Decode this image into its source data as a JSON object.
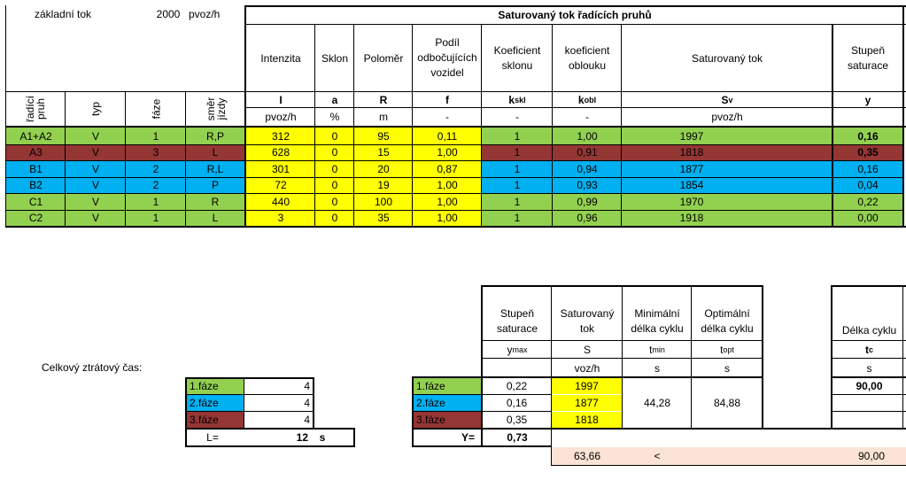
{
  "top": {
    "base_flow_label": "základní tok",
    "base_flow_value": "2000",
    "base_flow_unit": "pvoz/h",
    "section_title": "Saturovaný tok řadících pruhů",
    "headers": {
      "intensity": "Intenzita",
      "slope": "Sklon",
      "radius": "Poloměr",
      "turning_share": "Podíl odbočujících vozidel",
      "slope_coef": "Koeficient sklonu",
      "curve_coef": "koeficient oblouku",
      "sat_flow": "Saturovaný tok",
      "degree": "Stupeň saturace"
    },
    "row_headers": {
      "lane": "řadící pruh",
      "type": "typ",
      "phase": "fáze",
      "direction": "směr jízdy"
    },
    "symbols": {
      "intensity": "I",
      "slope": "a",
      "radius": "R",
      "turning_share": "f",
      "slope_coef_main": "k",
      "slope_coef_sub": "skl",
      "curve_coef_main": "k",
      "curve_coef_sub": "obl",
      "sat_flow_main": "S",
      "sat_flow_sub": "v",
      "degree": "y"
    },
    "units": {
      "intensity": "pvoz/h",
      "slope": "%",
      "radius": "m",
      "turning_share": "-",
      "slope_coef": "-",
      "curve_coef": "-",
      "sat_flow": "pvoz/h"
    },
    "rows": [
      {
        "lane": "A1+A2",
        "type": "V",
        "phase": "1",
        "direction": "R,P",
        "I": "312",
        "a": "0",
        "R": "95",
        "f": "0,11",
        "kskl": "1",
        "kobl": "1,00",
        "Sv": "1997",
        "y": "0,16",
        "color": "#92d050",
        "y_bold": true
      },
      {
        "lane": "A3",
        "type": "V",
        "phase": "3",
        "direction": "L",
        "I": "628",
        "a": "0",
        "R": "15",
        "f": "1,00",
        "kskl": "1",
        "kobl": "0,91",
        "Sv": "1818",
        "y": "0,35",
        "color": "#943634",
        "y_bold": true
      },
      {
        "lane": "B1",
        "type": "V",
        "phase": "2",
        "direction": "R,L",
        "I": "301",
        "a": "0",
        "R": "20",
        "f": "0,87",
        "kskl": "1",
        "kobl": "0,94",
        "Sv": "1877",
        "y": "0,16",
        "color": "#00b0f0",
        "y_bold": false
      },
      {
        "lane": "B2",
        "type": "V",
        "phase": "2",
        "direction": "P",
        "I": "72",
        "a": "0",
        "R": "19",
        "f": "1,00",
        "kskl": "1",
        "kobl": "0,93",
        "Sv": "1854",
        "y": "0,04",
        "color": "#00b0f0",
        "y_bold": false
      },
      {
        "lane": "C1",
        "type": "V",
        "phase": "1",
        "direction": "R",
        "I": "440",
        "a": "0",
        "R": "100",
        "f": "1,00",
        "kskl": "1",
        "kobl": "0,99",
        "Sv": "1970",
        "y": "0,22",
        "color": "#92d050",
        "y_bold": false
      },
      {
        "lane": "C2",
        "type": "V",
        "phase": "1",
        "direction": "L",
        "I": "3",
        "a": "0",
        "R": "35",
        "f": "1,00",
        "kskl": "1",
        "kobl": "0,96",
        "Sv": "1918",
        "y": "0,00",
        "color": "#92d050",
        "y_bold": false
      }
    ]
  },
  "loss": {
    "label": "Celkový ztrátový čas:",
    "phases": [
      {
        "name": "1.fáze",
        "value": "4",
        "color": "#92d050"
      },
      {
        "name": "2.fáze",
        "value": "4",
        "color": "#00b0f0"
      },
      {
        "name": "3.fáze",
        "value": "4",
        "color": "#943634"
      }
    ],
    "total_label": "L=",
    "total_value": "12",
    "total_unit": "s"
  },
  "cycle": {
    "headers": {
      "degree": "Stupeň saturace",
      "sat_flow": "Saturovaný tok",
      "min_cycle": "Minimální délka cyklu",
      "opt_cycle": "Optimální délka cyklu",
      "cycle_len": "Délka cyklu"
    },
    "symbols": {
      "degree": "y",
      "degree_sub": "max",
      "sat_flow": "S",
      "min_cycle": "t",
      "min_cycle_sub": "min",
      "opt_cycle": "t",
      "opt_cycle_sub": "opt",
      "cycle_len": "t",
      "cycle_len_sub": "c"
    },
    "units": {
      "sat_flow": "voz/h",
      "min_cycle": "s",
      "opt_cycle": "s",
      "cycle_len": "s"
    },
    "phases": [
      {
        "name": "1.fáze",
        "ymax": "0,22",
        "S": "1997",
        "color": "#92d050"
      },
      {
        "name": "2.fáze",
        "ymax": "0,16",
        "S": "1877",
        "color": "#00b0f0"
      },
      {
        "name": "3.fáze",
        "ymax": "0,35",
        "S": "1818",
        "color": "#943634"
      }
    ],
    "min_cycle_value": "44,28",
    "opt_cycle_value": "84,88",
    "cycle_value": "90,00",
    "Y_label": "Y=",
    "Y_value": "0,73",
    "compare_left": "63,66",
    "compare_sign": "<",
    "compare_right": "90,00"
  }
}
